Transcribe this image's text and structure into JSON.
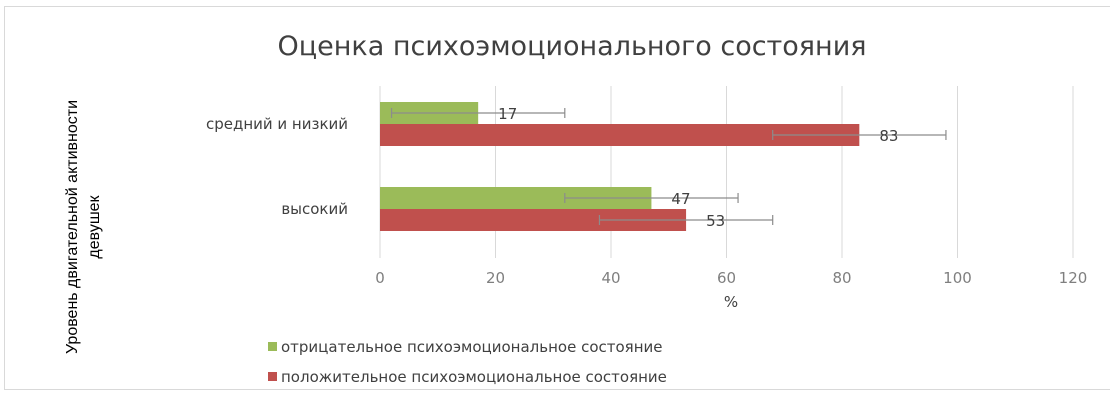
{
  "chart_data": {
    "type": "bar",
    "orientation": "horizontal",
    "title": "Оценка психоэмоционального состояния",
    "xlabel": "%",
    "ylabel_lines": [
      "Уровень двигательной активности",
      "девушек"
    ],
    "categories": [
      "средний и низкий",
      "высокий"
    ],
    "xlim": [
      0,
      120
    ],
    "xticks": [
      "0",
      "20",
      "40",
      "60",
      "80",
      "100",
      "120"
    ],
    "grid": true,
    "legend_position": "bottom",
    "series": [
      {
        "name": "отрицательное психоэмоциональное состояние",
        "color": "#9bbb59",
        "values": [
          17,
          47
        ],
        "labels": [
          "17",
          "47"
        ],
        "errors": [
          15,
          15
        ]
      },
      {
        "name": "положительное психоэмоциональное состояние",
        "color": "#c0504d",
        "values": [
          83,
          53
        ],
        "labels": [
          "83",
          "53"
        ],
        "errors": [
          15,
          15
        ]
      }
    ]
  }
}
